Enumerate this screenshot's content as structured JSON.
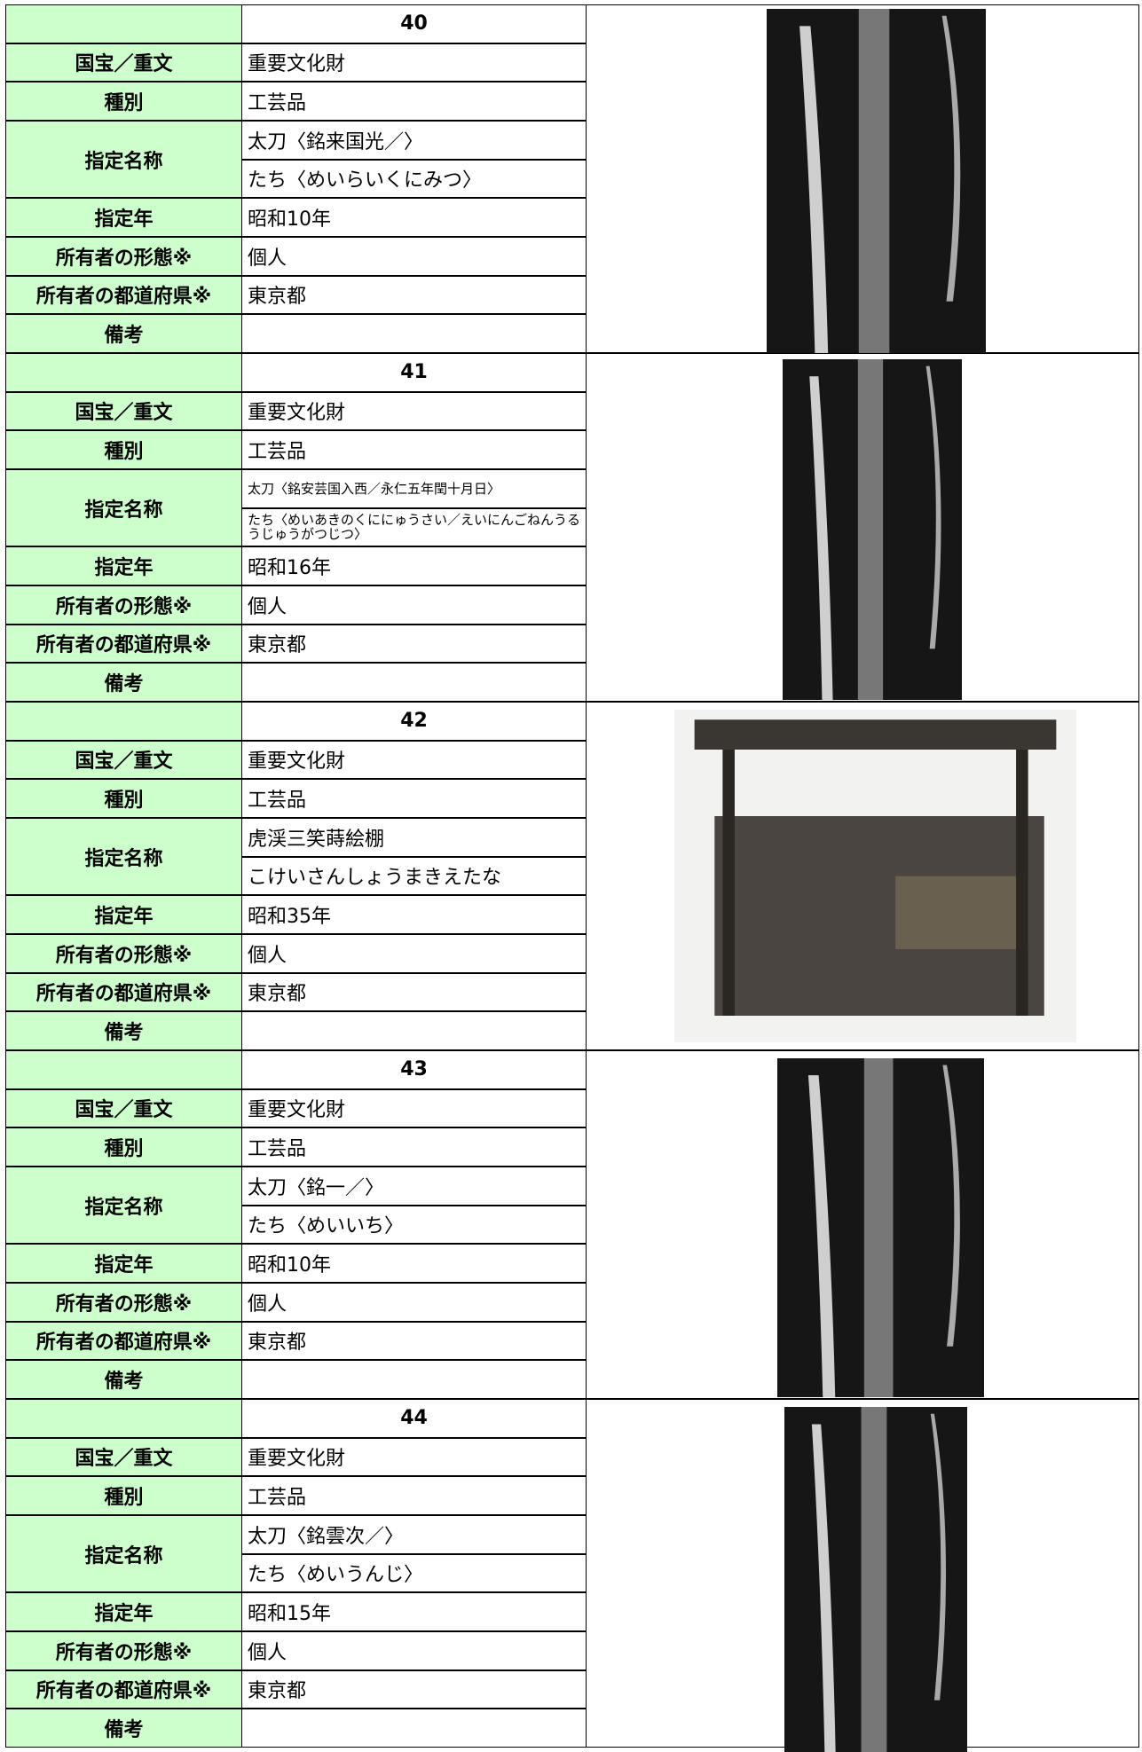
{
  "records": [
    {
      "number": "40",
      "fields": [
        {
          "label": "国宝／重文",
          "values": [
            "重要文化財"
          ]
        },
        {
          "label": "種別",
          "values": [
            "工芸品"
          ]
        },
        {
          "label": "指定名称",
          "values": [
            "太刀〈銘来国光／〉",
            "たち〈めいらいくにみつ〉"
          ]
        },
        {
          "label": "指定年",
          "values": [
            "昭和10年"
          ]
        },
        {
          "label": "所有者の形態※",
          "values": [
            "個人"
          ]
        },
        {
          "label": "所有者の都道府県※",
          "values": [
            "東京都"
          ]
        },
        {
          "label": "備考",
          "values": []
        }
      ]
    },
    {
      "number": "41",
      "fields": [
        {
          "label": "国宝／重文",
          "values": [
            "重要文化財"
          ]
        },
        {
          "label": "種別",
          "values": [
            "工芸品"
          ]
        },
        {
          "label": "指定名称",
          "values": [
            "太刀〈銘安芸国入西／永仁五年閏十月日〉",
            "たち〈めいあきのくににゅうさい／えいにんごねんうるうじゅうがつじつ〉"
          ]
        },
        {
          "label": "指定年",
          "values": [
            "昭和16年"
          ]
        },
        {
          "label": "所有者の形態※",
          "values": [
            "個人"
          ]
        },
        {
          "label": "所有者の都道府県※",
          "values": [
            "東京都"
          ]
        },
        {
          "label": "備考",
          "values": []
        }
      ]
    },
    {
      "number": "42",
      "fields": [
        {
          "label": "国宝／重文",
          "values": [
            "重要文化財"
          ]
        },
        {
          "label": "種別",
          "values": [
            "工芸品"
          ]
        },
        {
          "label": "指定名称",
          "values": [
            "虎渓三笑蒔絵棚",
            "こけいさんしょうまきえたな"
          ]
        },
        {
          "label": "指定年",
          "values": [
            "昭和35年"
          ]
        },
        {
          "label": "所有者の形態※",
          "values": [
            "個人"
          ]
        },
        {
          "label": "所有者の都道府県※",
          "values": [
            "東京都"
          ]
        },
        {
          "label": "備考",
          "values": []
        }
      ]
    },
    {
      "number": "43",
      "fields": [
        {
          "label": "国宝／重文",
          "values": [
            "重要文化財"
          ]
        },
        {
          "label": "種別",
          "values": [
            "工芸品"
          ]
        },
        {
          "label": "指定名称",
          "values": [
            "太刀〈銘一／〉",
            "たち〈めいいち〉"
          ]
        },
        {
          "label": "指定年",
          "values": [
            "昭和10年"
          ]
        },
        {
          "label": "所有者の形態※",
          "values": [
            "個人"
          ]
        },
        {
          "label": "所有者の都道府県※",
          "values": [
            "東京都"
          ]
        },
        {
          "label": "備考",
          "values": []
        }
      ]
    },
    {
      "number": "44",
      "fields": [
        {
          "label": "国宝／重文",
          "values": [
            "重要文化財"
          ]
        },
        {
          "label": "種別",
          "values": [
            "工芸品"
          ]
        },
        {
          "label": "指定名称",
          "values": [
            "太刀〈銘雲次／〉",
            "たち〈めいうんじ〉"
          ]
        },
        {
          "label": "指定年",
          "values": [
            "昭和15年"
          ]
        },
        {
          "label": "所有者の形態※",
          "values": [
            "個人"
          ]
        },
        {
          "label": "所有者の都道府県※",
          "values": [
            "東京都"
          ]
        },
        {
          "label": "備考",
          "values": []
        }
      ]
    }
  ]
}
